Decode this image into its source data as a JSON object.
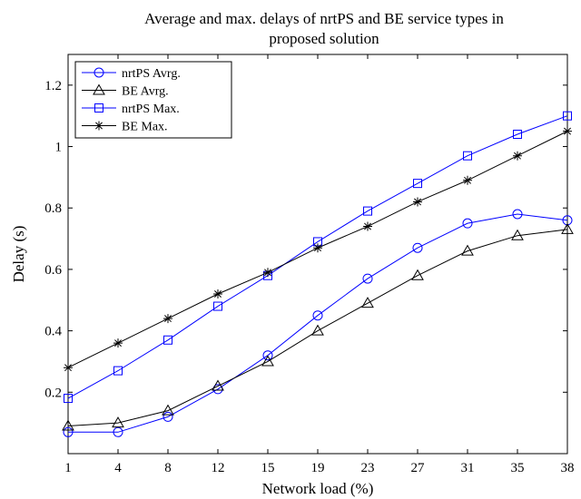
{
  "chart_data": {
    "type": "line",
    "title_lines": [
      "Average and max. delays of nrtPS and BE service types in",
      "proposed solution"
    ],
    "xlabel": "Network load (%)",
    "ylabel": "Delay (s)",
    "categories": [
      "1",
      "4",
      "8",
      "12",
      "15",
      "19",
      "23",
      "27",
      "31",
      "35",
      "38"
    ],
    "ylim": [
      0,
      1.3
    ],
    "yticks": [
      0.2,
      0.4,
      0.6,
      0.8,
      1,
      1.2
    ],
    "grid": false,
    "legend_position": "top-left",
    "series": [
      {
        "name": "nrtPS Avrg.",
        "marker": "circle",
        "color": "#0000ff",
        "values": [
          0.07,
          0.07,
          0.12,
          0.21,
          0.32,
          0.45,
          0.57,
          0.67,
          0.75,
          0.78,
          0.76
        ]
      },
      {
        "name": "BE Avrg.",
        "marker": "triangle",
        "color": "#000000",
        "values": [
          0.09,
          0.1,
          0.14,
          0.22,
          0.3,
          0.4,
          0.49,
          0.58,
          0.66,
          0.71,
          0.73
        ]
      },
      {
        "name": "nrtPS Max.",
        "marker": "square",
        "color": "#0000ff",
        "values": [
          0.18,
          0.27,
          0.37,
          0.48,
          0.58,
          0.69,
          0.79,
          0.88,
          0.97,
          1.04,
          1.1
        ]
      },
      {
        "name": "BE Max.",
        "marker": "star",
        "color": "#000000",
        "values": [
          0.28,
          0.36,
          0.44,
          0.52,
          0.59,
          0.67,
          0.74,
          0.82,
          0.89,
          0.97,
          1.05
        ]
      }
    ]
  }
}
